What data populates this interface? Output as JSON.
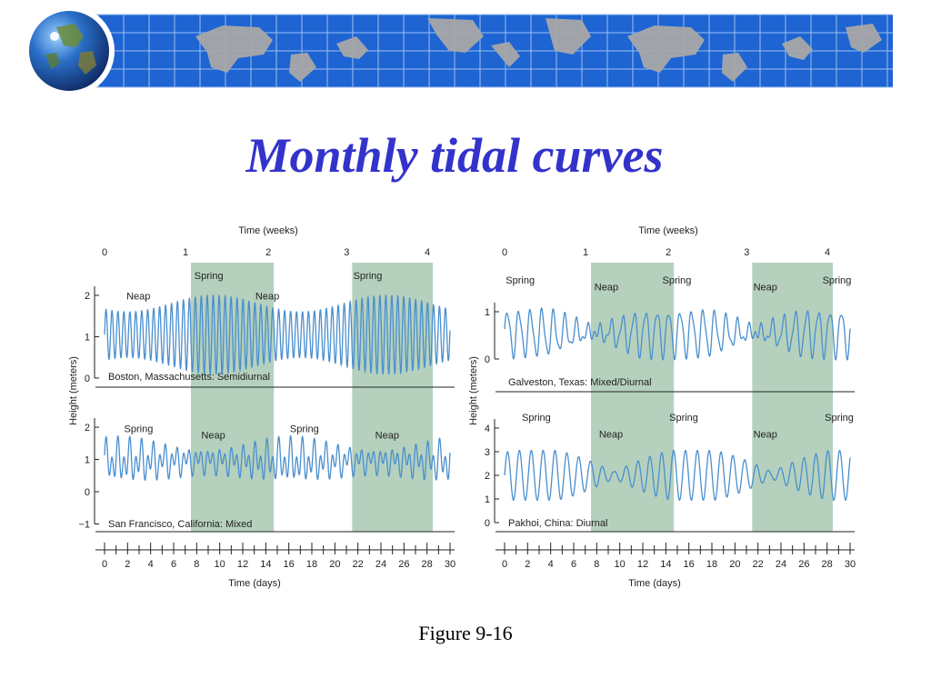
{
  "slide": {
    "title": "Monthly tidal curves",
    "caption": "Figure 9-16"
  },
  "colors": {
    "banner_blue": "#1e64d2",
    "grid_line": "#9cc0f0",
    "land": "#a8a8a8",
    "title_blue": "#3333cc",
    "spring_band": "#b5d1bd",
    "curve": "#4a8fcf",
    "axis": "#222222"
  },
  "icons": {
    "logo": "globe-icon",
    "banner": "world-map-icon"
  },
  "chart_data": [
    {
      "type": "line",
      "panel": "left",
      "top_axis": {
        "label": "Time (weeks)",
        "ticks": [
          "0",
          "1",
          "2",
          "3",
          "4"
        ]
      },
      "bottom_axis": {
        "label": "Time (days)",
        "ticks": [
          "0",
          "2",
          "4",
          "6",
          "8",
          "10",
          "12",
          "14",
          "16",
          "18",
          "20",
          "22",
          "24",
          "26",
          "28",
          "30"
        ]
      },
      "ylabel": "Height (meters)",
      "spring_bands_days": [
        [
          7.5,
          14.7
        ],
        [
          21.5,
          28.5
        ]
      ],
      "plots": [
        {
          "location": "Boston, Massachusetts: Semidiurnal",
          "yticks": [
            "0",
            "1",
            "2"
          ],
          "ylim": [
            0,
            2
          ],
          "phase_labels": [
            {
              "text": "Neap",
              "day": 1.9,
              "y": 1.9
            },
            {
              "text": "Spring",
              "day": 7.8,
              "y": 2.4
            },
            {
              "text": "Neap",
              "day": 13.1,
              "y": 1.9
            },
            {
              "text": "Spring",
              "day": 21.6,
              "y": 2.4
            }
          ],
          "series": [
            {
              "kind": "semidiurnal",
              "mean": 1.05,
              "amp_min": 0.55,
              "amp_max": 0.95,
              "spring_peaks_days": [
                9.5,
                24.5
              ],
              "period_days": 15
            }
          ]
        },
        {
          "location": "San Francisco, California: Mixed",
          "yticks": [
            "−1",
            "0",
            "1",
            "2"
          ],
          "ylim": [
            -1,
            2
          ],
          "phase_labels": [
            {
              "text": "Spring",
              "day": 1.7,
              "y": 1.85
            },
            {
              "text": "Neap",
              "day": 8.4,
              "y": 1.65
            },
            {
              "text": "Spring",
              "day": 16.1,
              "y": 1.85
            },
            {
              "text": "Neap",
              "day": 23.5,
              "y": 1.65
            }
          ],
          "series": [
            {
              "kind": "mixed",
              "mean": 0.95,
              "amp_min": 0.35,
              "amp_max": 0.6,
              "period_days": 14.7
            }
          ]
        }
      ]
    },
    {
      "type": "line",
      "panel": "right",
      "top_axis": {
        "label": "Time (weeks)",
        "ticks": [
          "0",
          "1",
          "2",
          "3",
          "4"
        ]
      },
      "bottom_axis": {
        "label": "Time (days)",
        "ticks": [
          "0",
          "2",
          "4",
          "6",
          "8",
          "10",
          "12",
          "14",
          "16",
          "18",
          "20",
          "22",
          "24",
          "26",
          "28",
          "30"
        ]
      },
      "ylabel": "Height (meters)",
      "spring_bands_days": [
        [
          7.5,
          14.7
        ],
        [
          21.5,
          28.5
        ]
      ],
      "plots": [
        {
          "location": "Galveston, Texas: Mixed/Diurnal",
          "yticks": [
            "0",
            "1"
          ],
          "ylim": [
            0,
            1
          ],
          "phase_labels": [
            {
              "text": "Spring",
              "day": 0.1,
              "y": 1.6
            },
            {
              "text": "Neap",
              "day": 7.8,
              "y": 1.45
            },
            {
              "text": "Spring",
              "day": 13.7,
              "y": 1.6
            },
            {
              "text": "Neap",
              "day": 21.6,
              "y": 1.45
            },
            {
              "text": "Spring",
              "day": 27.6,
              "y": 1.6
            }
          ],
          "series": [
            {
              "kind": "mixed-diurnal",
              "mean": 0.55,
              "amp_min": 0.08,
              "amp_max": 0.55,
              "neap_days": [
                7.8,
                21.8
              ],
              "period_days": 14
            }
          ]
        },
        {
          "location": "Pakhoi, China: Diurnal",
          "yticks": [
            "0",
            "1",
            "2",
            "3",
            "4"
          ],
          "ylim": [
            0,
            4
          ],
          "phase_labels": [
            {
              "text": "Spring",
              "day": 1.5,
              "y": 4.3
            },
            {
              "text": "Neap",
              "day": 8.2,
              "y": 3.6
            },
            {
              "text": "Spring",
              "day": 14.3,
              "y": 4.3
            },
            {
              "text": "Neap",
              "day": 21.6,
              "y": 3.6
            },
            {
              "text": "Spring",
              "day": 27.8,
              "y": 4.3
            }
          ],
          "series": [
            {
              "kind": "diurnal",
              "mean": 2.0,
              "amp_min": 0.15,
              "amp_max": 1.05,
              "neap_days": [
                9.5,
                21.9
              ],
              "period_days": 13.7
            }
          ]
        }
      ]
    }
  ]
}
